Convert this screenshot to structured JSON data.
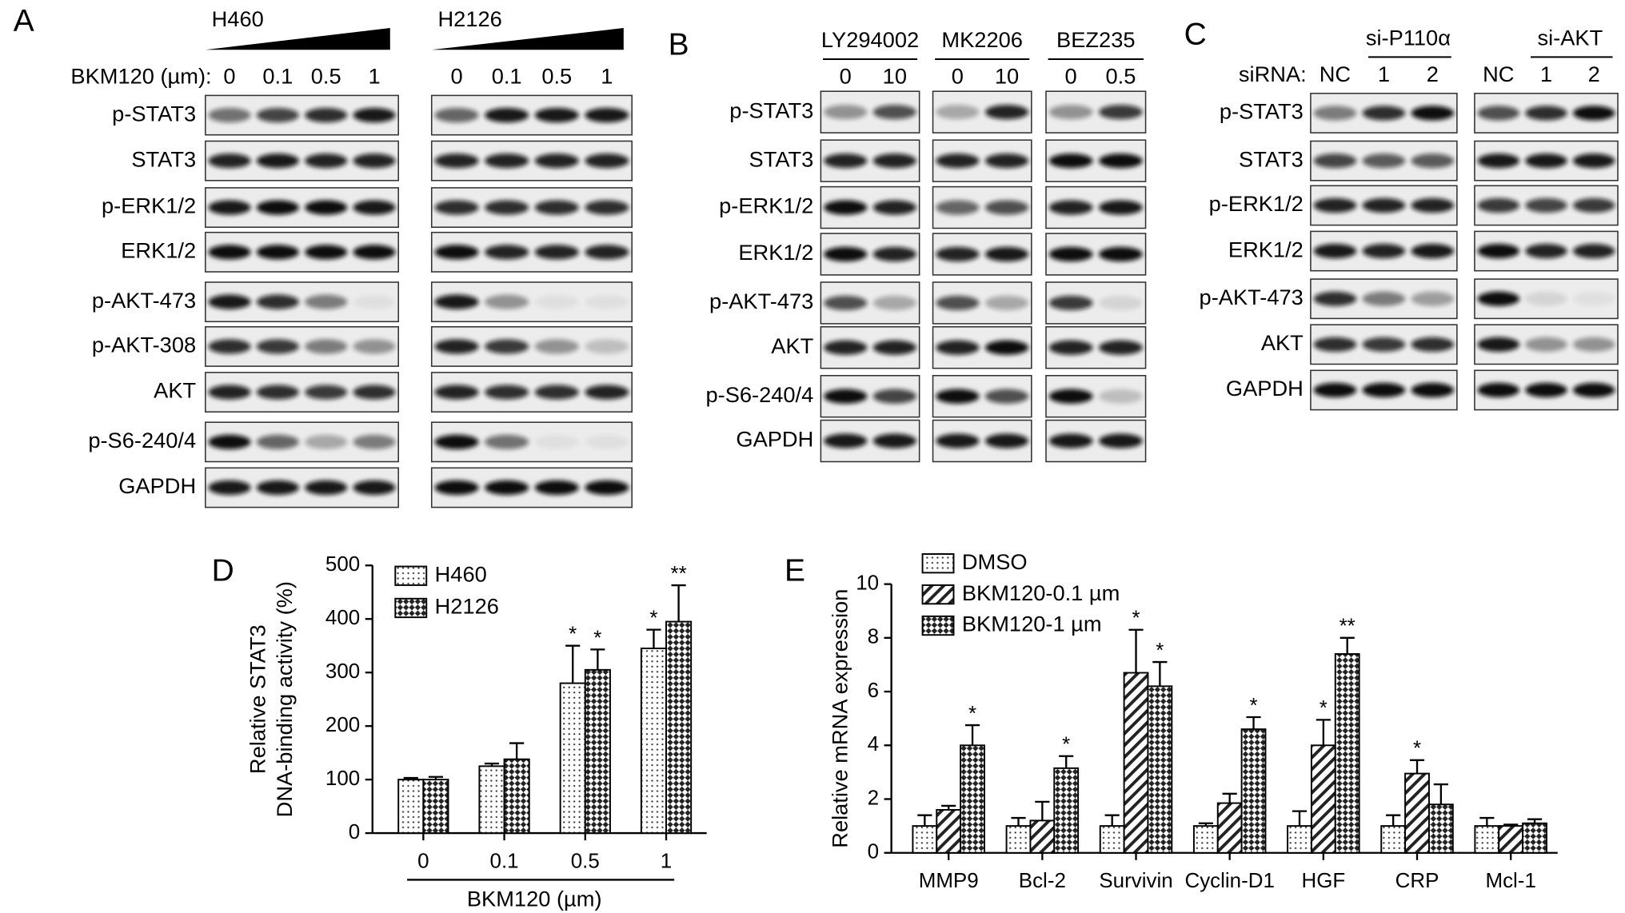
{
  "panels": [
    {
      "label": "A",
      "treatment": "BKM120 (µm):",
      "groups": [
        {
          "name": "H460",
          "lanes": [
            "0",
            "0.1",
            "0.5",
            "1"
          ]
        },
        {
          "name": "H2126",
          "lanes": [
            "0",
            "0.1",
            "0.5",
            "1"
          ]
        }
      ],
      "rows": [
        "p-STAT3",
        "STAT3",
        "p-ERK1/2",
        "ERK1/2",
        "p-AKT-473",
        "p-AKT-308",
        "AKT",
        "p-S6-240/4",
        "GAPDH"
      ]
    },
    {
      "label": "B",
      "groups": [
        {
          "name": "LY294002",
          "lanes": [
            "0",
            "10"
          ]
        },
        {
          "name": "MK2206",
          "lanes": [
            "0",
            "10"
          ]
        },
        {
          "name": "BEZ235",
          "lanes": [
            "0",
            "0.5"
          ]
        }
      ],
      "rows": [
        "p-STAT3",
        "STAT3",
        "p-ERK1/2",
        "ERK1/2",
        "p-AKT-473",
        "AKT",
        "p-S6-240/4",
        "GAPDH"
      ]
    },
    {
      "label": "C",
      "treatment": "siRNA:",
      "groups": [
        {
          "name": "si-P110α",
          "lanes": [
            "NC",
            "1",
            "2"
          ]
        },
        {
          "name": "si-AKT",
          "lanes": [
            "NC",
            "1",
            "2"
          ]
        }
      ],
      "rows": [
        "p-STAT3",
        "STAT3",
        "p-ERK1/2",
        "ERK1/2",
        "p-AKT-473",
        "AKT",
        "GAPDH"
      ]
    }
  ],
  "chart_data": [
    {
      "label": "D",
      "type": "bar",
      "ylabel": [
        "Relative STAT3",
        "DNA-binding activity (%)"
      ],
      "xlabel": "BKM120 (µm)",
      "categories": [
        "0",
        "0.1",
        "0.5",
        "1"
      ],
      "ylim": [
        0,
        500
      ],
      "yticks": [
        0,
        100,
        200,
        300,
        400,
        500
      ],
      "series": [
        {
          "name": "H460",
          "pattern": "dots",
          "values": [
            100,
            125,
            280,
            345
          ],
          "errors": [
            3,
            5,
            70,
            35
          ],
          "annotations": [
            null,
            null,
            "*",
            "*"
          ]
        },
        {
          "name": "H2126",
          "pattern": "checker",
          "values": [
            100,
            138,
            305,
            395
          ],
          "errors": [
            5,
            30,
            38,
            68
          ],
          "annotations": [
            null,
            null,
            "*",
            "**"
          ]
        }
      ]
    },
    {
      "label": "E",
      "type": "bar",
      "ylabel": [
        "Relative mRNA expression"
      ],
      "categories": [
        "MMP9",
        "Bcl-2",
        "Survivin",
        "Cyclin-D1",
        "HGF",
        "CRP",
        "Mcl-1"
      ],
      "ylim": [
        0,
        10
      ],
      "yticks": [
        0,
        2,
        4,
        6,
        8,
        10
      ],
      "series": [
        {
          "name": "DMSO",
          "pattern": "dots",
          "values": [
            1,
            1,
            1,
            1,
            1,
            1,
            1
          ],
          "errors": [
            0.4,
            0.3,
            0.4,
            0.1,
            0.55,
            0.4,
            0.3
          ],
          "annotations": [
            null,
            null,
            null,
            null,
            null,
            null,
            null
          ]
        },
        {
          "name": "BKM120-0.1 µm",
          "pattern": "hatch",
          "values": [
            1.6,
            1.2,
            6.7,
            1.85,
            4.0,
            2.95,
            1.0
          ],
          "errors": [
            0.15,
            0.7,
            1.6,
            0.35,
            0.95,
            0.5,
            0.05
          ],
          "annotations": [
            null,
            null,
            "*",
            null,
            "*",
            "*",
            null
          ]
        },
        {
          "name": "BKM120-1 µm",
          "pattern": "checker",
          "values": [
            4.0,
            3.15,
            6.2,
            4.6,
            7.4,
            1.8,
            1.1
          ],
          "errors": [
            0.75,
            0.45,
            0.9,
            0.45,
            0.6,
            0.75,
            0.15
          ],
          "annotations": [
            "*",
            "*",
            "*",
            "*",
            "**",
            null,
            null
          ]
        }
      ]
    }
  ]
}
